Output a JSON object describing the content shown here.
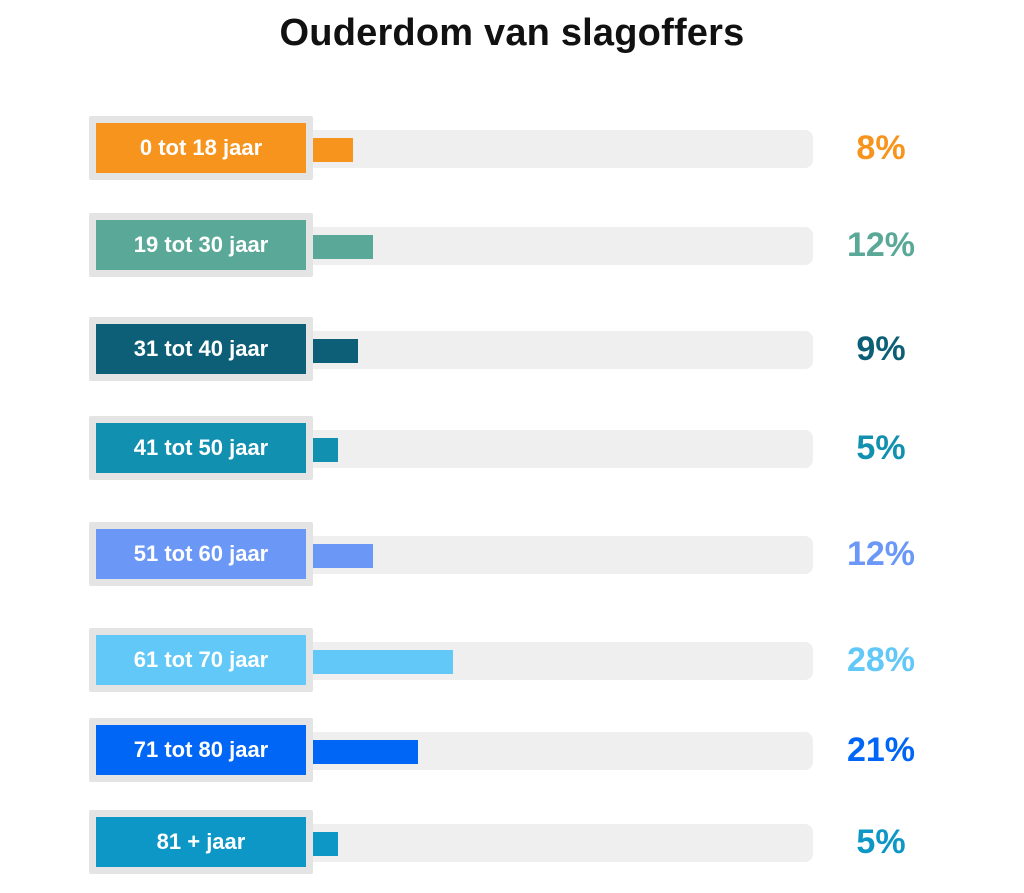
{
  "chart_data": {
    "type": "bar",
    "orientation": "horizontal",
    "title": "Ouderdom van slagoffers",
    "categories": [
      "0 tot 18 jaar",
      "19 tot 30 jaar",
      "31 tot 40 jaar",
      "41 tot 50 jaar",
      "51 tot 60 jaar",
      "61 tot 70 jaar",
      "71 tot 80 jaar",
      "81 + jaar"
    ],
    "values": [
      8,
      12,
      9,
      5,
      12,
      28,
      21,
      5
    ],
    "value_labels": [
      "8%",
      "12%",
      "9%",
      "5%",
      "12%",
      "28%",
      "21%",
      "5%"
    ],
    "colors": [
      "#f7941d",
      "#5aa897",
      "#0d5f78",
      "#1190b0",
      "#6b98f7",
      "#62c8f8",
      "#0066f5",
      "#0c97c6"
    ],
    "track_color": "#efefef",
    "xlim": [
      0,
      100
    ],
    "grid": false,
    "legend": "none"
  }
}
